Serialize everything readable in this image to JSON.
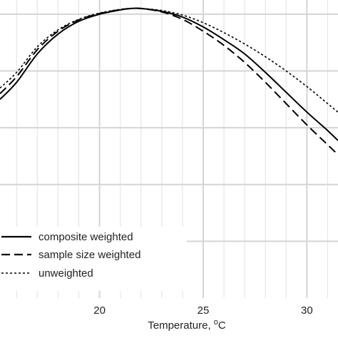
{
  "chart_data": {
    "type": "line",
    "xlabel": "Temperature, ",
    "xlabel_unit": "oC",
    "xlim": [
      15.2,
      31.5
    ],
    "ylim": [
      0.0,
      1.05
    ],
    "x_ticks": [
      20,
      25,
      30
    ],
    "y_gridlines": [
      0.2,
      0.4,
      0.6,
      0.8,
      1.0
    ],
    "x_minor_step": 1,
    "grid": true,
    "legend_position": "bottom-left",
    "series": [
      {
        "name": "composite weighted",
        "style": "solid",
        "points": [
          [
            15.2,
            0.7
          ],
          [
            16,
            0.76
          ],
          [
            17,
            0.86
          ],
          [
            18,
            0.93
          ],
          [
            19,
            0.975
          ],
          [
            20,
            1.0
          ],
          [
            21,
            1.015
          ],
          [
            21.5,
            1.02
          ],
          [
            22,
            1.02
          ],
          [
            23,
            1.01
          ],
          [
            24,
            0.99
          ],
          [
            25,
            0.955
          ],
          [
            26,
            0.91
          ],
          [
            27,
            0.86
          ],
          [
            28,
            0.795
          ],
          [
            29,
            0.725
          ],
          [
            30,
            0.655
          ],
          [
            31,
            0.59
          ],
          [
            31.5,
            0.555
          ]
        ]
      },
      {
        "name": "sample size weighted",
        "style": "dashed",
        "points": [
          [
            15.2,
            0.72
          ],
          [
            16,
            0.78
          ],
          [
            17,
            0.875
          ],
          [
            18,
            0.94
          ],
          [
            19,
            0.98
          ],
          [
            20,
            1.002
          ],
          [
            21,
            1.016
          ],
          [
            21.5,
            1.02
          ],
          [
            22,
            1.02
          ],
          [
            23,
            1.008
          ],
          [
            24,
            0.982
          ],
          [
            25,
            0.94
          ],
          [
            26,
            0.89
          ],
          [
            27,
            0.83
          ],
          [
            28,
            0.76
          ],
          [
            29,
            0.685
          ],
          [
            30,
            0.61
          ],
          [
            31,
            0.54
          ],
          [
            31.5,
            0.505
          ]
        ]
      },
      {
        "name": "unweighted",
        "style": "dotted",
        "points": [
          [
            15.2,
            0.74
          ],
          [
            16,
            0.795
          ],
          [
            17,
            0.885
          ],
          [
            18,
            0.945
          ],
          [
            19,
            0.982
          ],
          [
            20,
            1.004
          ],
          [
            21,
            1.017
          ],
          [
            21.5,
            1.02
          ],
          [
            22,
            1.02
          ],
          [
            23,
            1.013
          ],
          [
            24,
            0.997
          ],
          [
            25,
            0.97
          ],
          [
            26,
            0.935
          ],
          [
            27,
            0.895
          ],
          [
            28,
            0.85
          ],
          [
            29,
            0.8
          ],
          [
            30,
            0.745
          ],
          [
            31,
            0.685
          ],
          [
            31.5,
            0.655
          ]
        ]
      }
    ]
  }
}
